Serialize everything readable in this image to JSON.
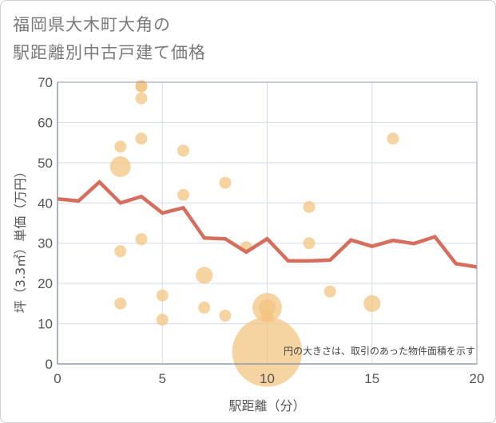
{
  "page": {
    "title": "福岡県大木町大角の\n駅距離別中古戸建て価格"
  },
  "chart_data": {
    "type": "scatter",
    "title": "福岡県大木町大角の駅距離別中古戸建て価格",
    "xlabel": "駅距離（分）",
    "ylabel": "坪（3.3㎡）単価（万円）",
    "xlim": [
      0,
      20
    ],
    "ylim": [
      0,
      70
    ],
    "xticks": [
      0,
      5,
      10,
      15,
      20
    ],
    "yticks": [
      0,
      10,
      20,
      30,
      40,
      50,
      60,
      70
    ],
    "grid": true,
    "note": "円の大きさは、取引のあった物件面積を示す",
    "colors": {
      "bubble": "#f3c37e",
      "line": "#d56e5c",
      "grid": "#d5dbe7",
      "axis": "#8f9ab0"
    },
    "bubbles": [
      {
        "x": 3,
        "y": 54,
        "size": 1
      },
      {
        "x": 3,
        "y": 49,
        "size": 3
      },
      {
        "x": 3,
        "y": 28,
        "size": 1
      },
      {
        "x": 3,
        "y": 15,
        "size": 1
      },
      {
        "x": 4,
        "y": 69,
        "size": 1
      },
      {
        "x": 4,
        "y": 69,
        "size": 1
      },
      {
        "x": 4,
        "y": 66,
        "size": 1
      },
      {
        "x": 4,
        "y": 56,
        "size": 1
      },
      {
        "x": 4,
        "y": 31,
        "size": 1
      },
      {
        "x": 5,
        "y": 17,
        "size": 1
      },
      {
        "x": 5,
        "y": 11,
        "size": 1
      },
      {
        "x": 6,
        "y": 53,
        "size": 1
      },
      {
        "x": 6,
        "y": 42,
        "size": 1
      },
      {
        "x": 7,
        "y": 22,
        "size": 2
      },
      {
        "x": 7,
        "y": 14,
        "size": 1
      },
      {
        "x": 8,
        "y": 45,
        "size": 1
      },
      {
        "x": 8,
        "y": 12,
        "size": 1
      },
      {
        "x": 9,
        "y": 29,
        "size": 1
      },
      {
        "x": 10,
        "y": 14,
        "size": 6
      },
      {
        "x": 10,
        "y": 14,
        "size": 2
      },
      {
        "x": 10,
        "y": 12,
        "size": 1
      },
      {
        "x": 10,
        "y": 3,
        "size": 34
      },
      {
        "x": 12,
        "y": 39,
        "size": 1
      },
      {
        "x": 12,
        "y": 30,
        "size": 1
      },
      {
        "x": 13,
        "y": 18,
        "size": 1
      },
      {
        "x": 15,
        "y": 15,
        "size": 2
      },
      {
        "x": 16,
        "y": 56,
        "size": 1
      }
    ],
    "series": [
      {
        "x": [
          0,
          1,
          2,
          3,
          4,
          5,
          6,
          7,
          8,
          9,
          10,
          11,
          12,
          13,
          14,
          15,
          16,
          17,
          18,
          19,
          20
        ],
        "values": [
          41,
          40.5,
          45.2,
          40,
          41.6,
          37.5,
          38.8,
          31.3,
          31.1,
          27.8,
          31.1,
          25.6,
          25.6,
          25.8,
          30.8,
          29.2,
          30.7,
          29.9,
          31.6,
          24.9,
          24.1
        ]
      }
    ]
  }
}
